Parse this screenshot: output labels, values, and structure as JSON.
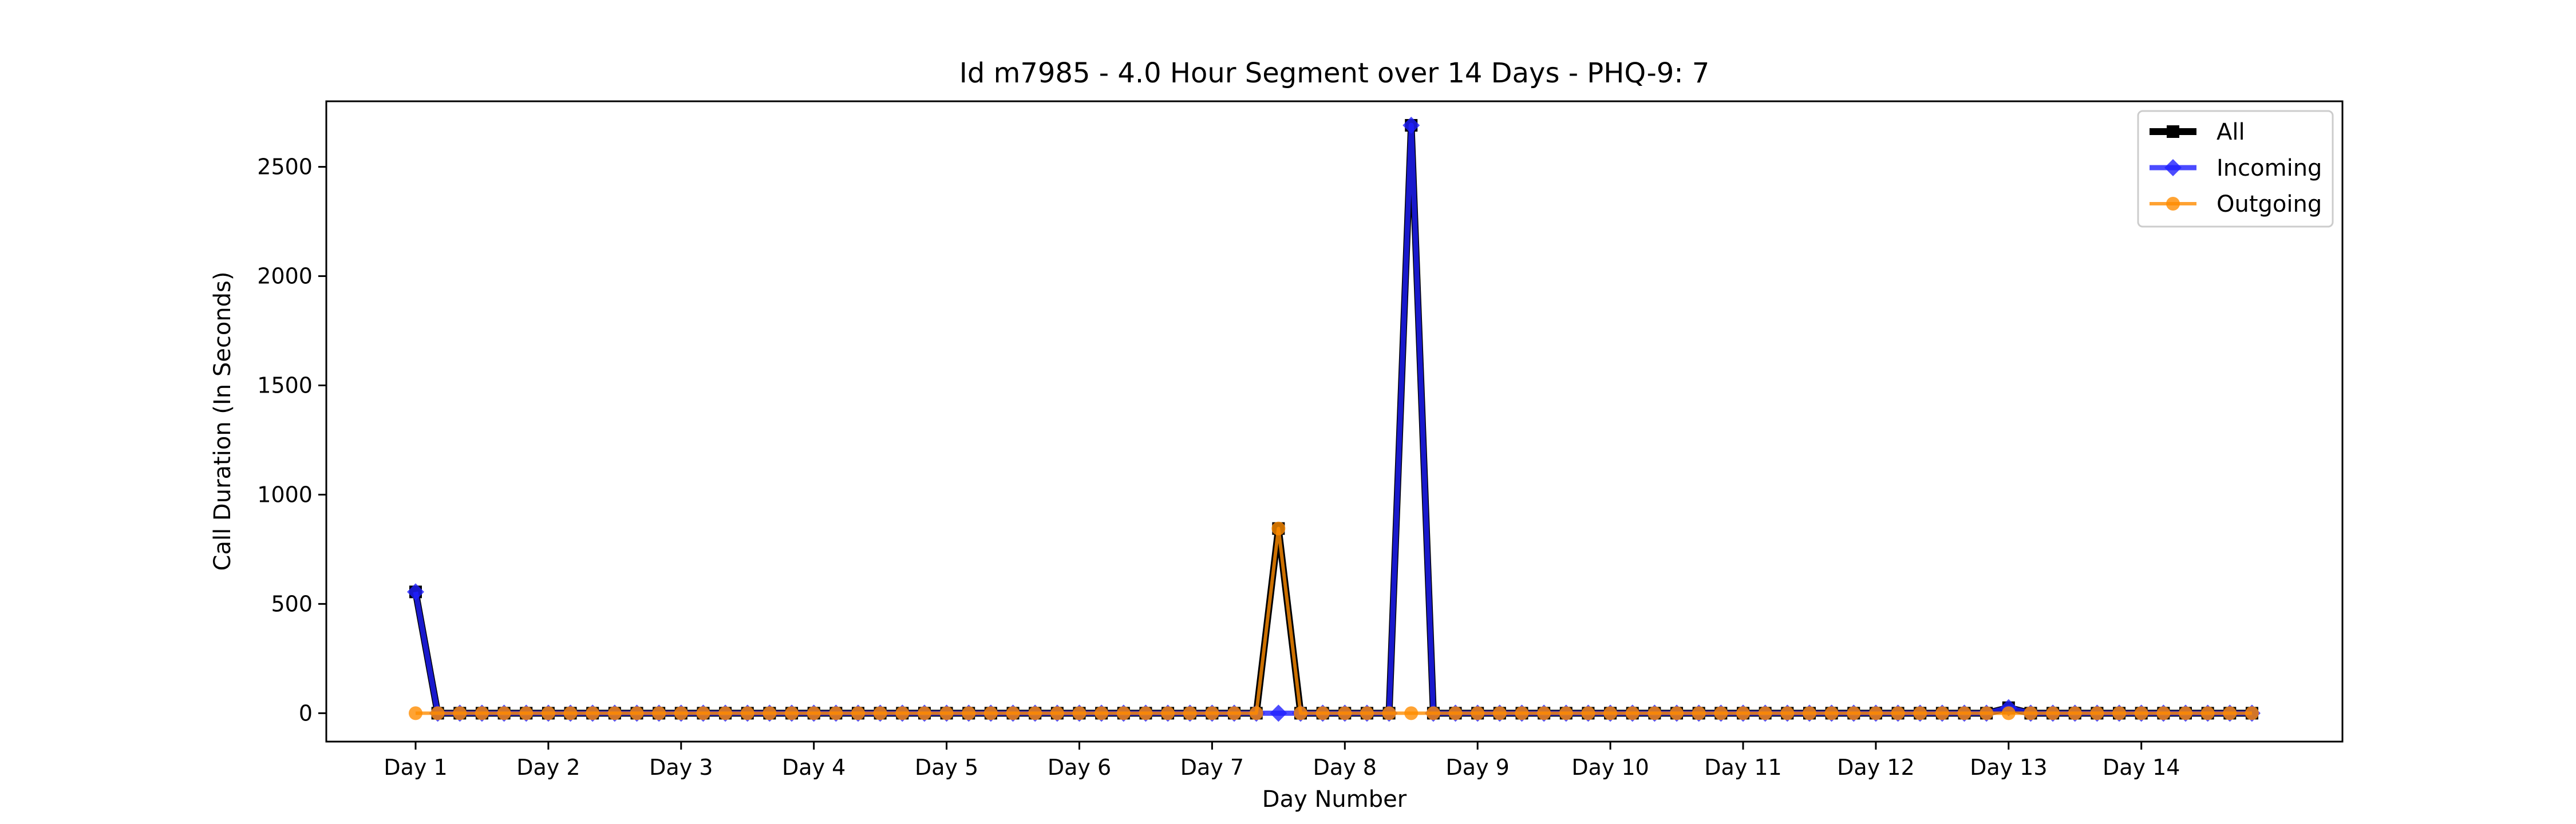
{
  "chart_data": {
    "type": "line",
    "title": "Id m7985 - 4.0 Hour Segment over 14 Days - PHQ-9: 7",
    "xlabel": "Day Number",
    "ylabel": "Call Duration (In Seconds)",
    "ylim": [
      -130,
      2800
    ],
    "yticks": [
      0,
      500,
      1000,
      1500,
      2000,
      2500
    ],
    "x_tick_labels": [
      "Day 1",
      "Day 2",
      "Day 3",
      "Day 4",
      "Day 5",
      "Day 6",
      "Day 7",
      "Day 8",
      "Day 9",
      "Day 10",
      "Day 11",
      "Day 12",
      "Day 13",
      "Day 14"
    ],
    "segments_per_day": 6,
    "num_points": 84,
    "legend_position": "top-right",
    "grid": false,
    "series": [
      {
        "name": "All",
        "color": "#000000",
        "marker": "square",
        "nonzero": [
          [
            0,
            555
          ],
          [
            39,
            845
          ],
          [
            45,
            2690
          ],
          [
            72,
            25
          ]
        ]
      },
      {
        "name": "Incoming",
        "color": "#1f1fff",
        "marker": "diamond",
        "nonzero": [
          [
            0,
            555
          ],
          [
            45,
            2690
          ],
          [
            72,
            25
          ]
        ]
      },
      {
        "name": "Outgoing",
        "color": "#ff8c00",
        "marker": "circle",
        "nonzero": [
          [
            39,
            845
          ]
        ]
      }
    ]
  }
}
